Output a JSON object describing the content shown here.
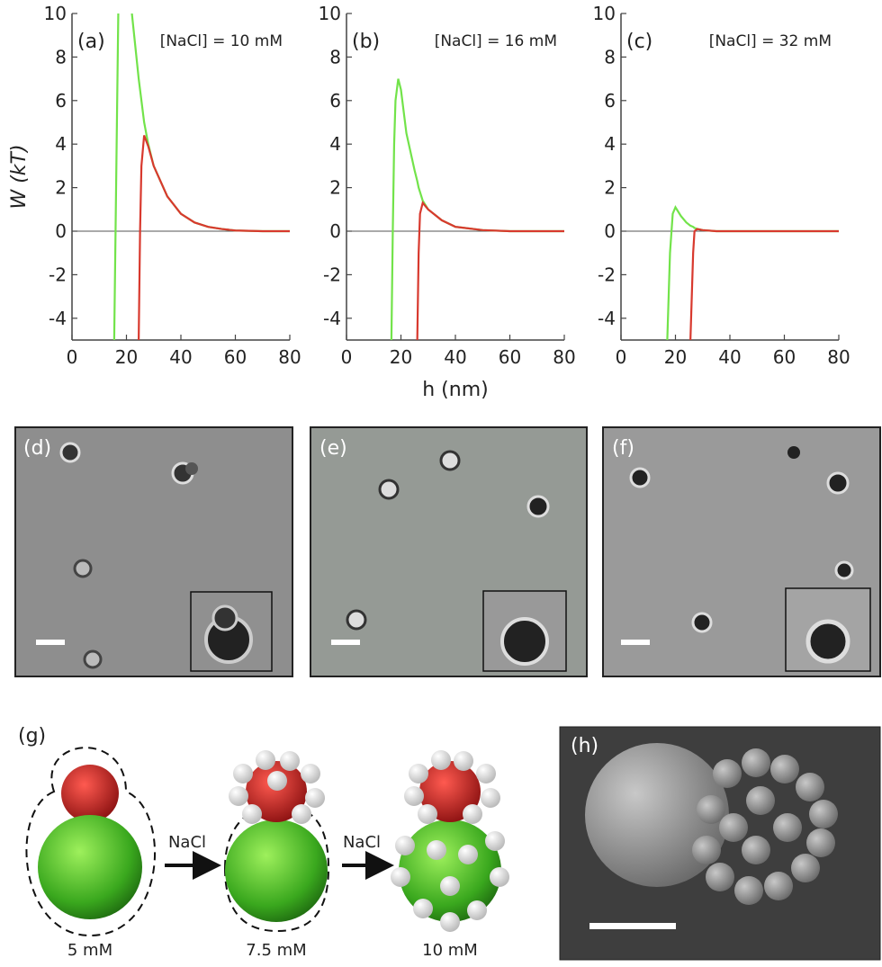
{
  "chart_data": [
    {
      "type": "line",
      "label": "(a)",
      "annotation": "[NaCl] = 10 mM",
      "ylabel": "W (kT)",
      "xlim": [
        0,
        80
      ],
      "ylim": [
        -5,
        10
      ],
      "xticks": [
        0,
        20,
        40,
        60,
        80
      ],
      "yticks": [
        -4,
        -2,
        0,
        2,
        4,
        6,
        8,
        10
      ],
      "x": [
        15.5,
        16,
        16.5,
        17,
        19.5,
        22,
        24.5,
        25,
        25.5,
        26.5,
        28,
        30,
        35,
        40,
        45,
        50,
        55,
        60,
        70,
        80
      ],
      "series": [
        {
          "color": "#72e34a",
          "values": [
            -5,
            0,
            5,
            10,
            null,
            10,
            7,
            6.5,
            6,
            5,
            4,
            3,
            1.6,
            0.8,
            0.4,
            0.2,
            0.1,
            0.03,
            0,
            0
          ]
        },
        {
          "color": "#d8392e",
          "values": [
            null,
            null,
            null,
            null,
            null,
            null,
            -5,
            0,
            3,
            4.4,
            3.9,
            3,
            1.6,
            0.8,
            0.4,
            0.2,
            0.1,
            0.03,
            0,
            0
          ]
        }
      ]
    },
    {
      "type": "line",
      "label": "(b)",
      "annotation": "[NaCl] = 16 mM",
      "xlabel": "h (nm)",
      "xlim": [
        0,
        80
      ],
      "ylim": [
        -5,
        10
      ],
      "xticks": [
        0,
        20,
        40,
        60,
        80
      ],
      "yticks": [
        -4,
        -2,
        0,
        2,
        4,
        6,
        8,
        10
      ],
      "x": [
        16.5,
        17,
        17.5,
        18,
        19,
        20,
        22,
        25,
        26,
        26.5,
        27,
        28,
        30,
        35,
        40,
        50,
        60,
        80
      ],
      "series": [
        {
          "color": "#72e34a",
          "values": [
            -5,
            0,
            4,
            6,
            7,
            6.5,
            4.5,
            2.8,
            2.3,
            2,
            1.8,
            1.4,
            1.0,
            0.5,
            0.2,
            0.05,
            0,
            0
          ]
        },
        {
          "color": "#d8392e",
          "values": [
            null,
            null,
            null,
            null,
            null,
            null,
            null,
            null,
            -5,
            -1,
            0.8,
            1.3,
            1.0,
            0.5,
            0.2,
            0.05,
            0,
            0
          ]
        }
      ]
    },
    {
      "type": "line",
      "label": "(c)",
      "annotation": "[NaCl] = 32 mM",
      "xlim": [
        0,
        80
      ],
      "ylim": [
        -5,
        10
      ],
      "xticks": [
        0,
        20,
        40,
        60,
        80
      ],
      "yticks": [
        -4,
        -2,
        0,
        2,
        4,
        6,
        8,
        10
      ],
      "x": [
        17,
        18,
        19,
        20,
        22,
        24,
        25.5,
        26.5,
        27,
        28,
        30,
        35,
        40,
        80
      ],
      "series": [
        {
          "color": "#72e34a",
          "values": [
            -5,
            -1,
            0.8,
            1.1,
            0.7,
            0.4,
            0.25,
            0.2,
            0.15,
            0.1,
            0.05,
            0,
            0,
            0
          ]
        },
        {
          "color": "#d8392e",
          "values": [
            null,
            null,
            null,
            null,
            null,
            null,
            -5,
            -1,
            0,
            0.1,
            0.05,
            0,
            0,
            0
          ]
        }
      ]
    }
  ],
  "panels": {
    "d": "(d)",
    "e": "(e)",
    "f": "(f)",
    "g": "(g)",
    "h": "(h)"
  },
  "schematic": {
    "arrow1": "NaCl",
    "arrow2": "NaCl",
    "stage1": "5 mM",
    "stage2": "7.5 mM",
    "stage3": "10 mM"
  }
}
